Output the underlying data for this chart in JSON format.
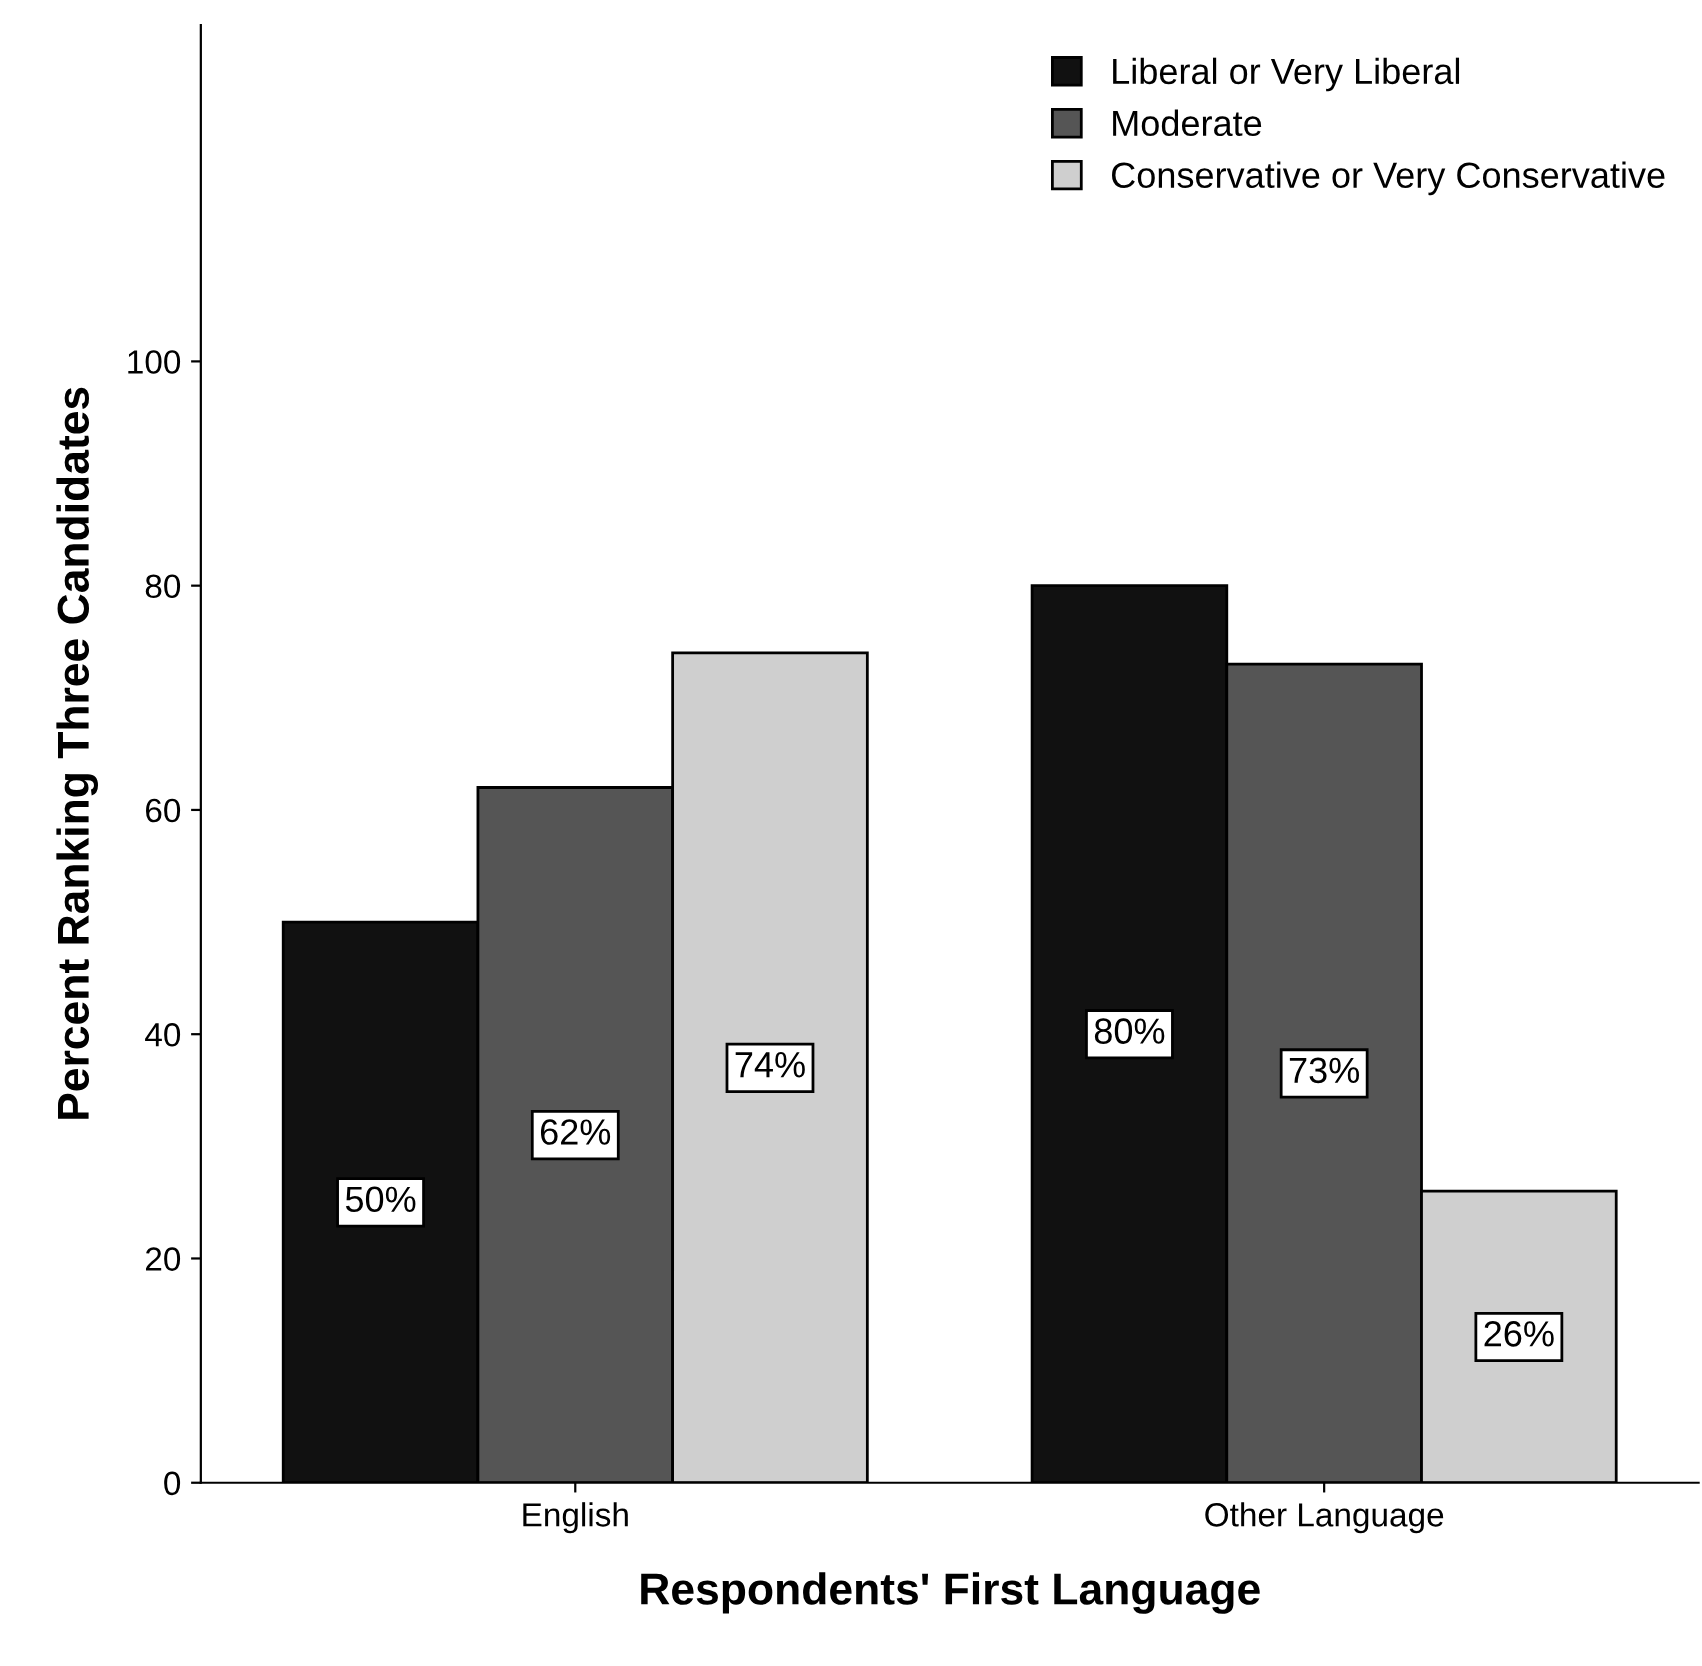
{
  "chart_data": {
    "type": "bar",
    "xlabel": "Respondents' First Language",
    "ylabel": "Percent Ranking Three Candidates",
    "categories": [
      "English",
      "Other Language"
    ],
    "series": [
      {
        "name": "Liberal or Very Liberal",
        "color": "#111111",
        "values": [
          50,
          80
        ],
        "value_labels": [
          "50%",
          "80%"
        ]
      },
      {
        "name": "Moderate",
        "color": "#555555",
        "values": [
          62,
          73
        ],
        "value_labels": [
          "62%",
          "73%"
        ]
      },
      {
        "name": "Conservative or Very Conservative",
        "color": "#cfcfcf",
        "values": [
          74,
          26
        ],
        "value_labels": [
          "74%",
          "26%"
        ]
      }
    ],
    "ylim": [
      0,
      130
    ],
    "yticks": [
      0,
      20,
      40,
      60,
      80,
      100
    ],
    "grid": false,
    "legend": "top right"
  }
}
